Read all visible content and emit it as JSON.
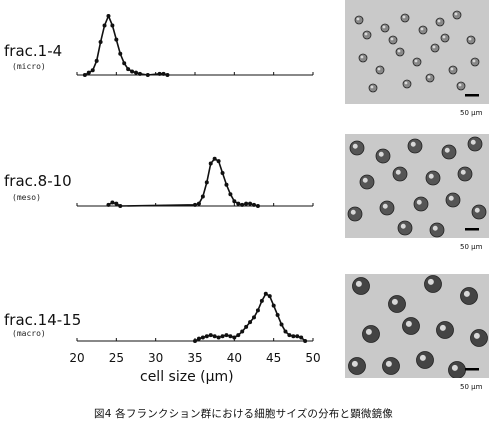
{
  "caption": "図4 各フランクション群における細胞サイズの分布と顕微鏡像",
  "chart_data": {
    "type": "line",
    "xlabel": "cell size (µm)",
    "xlim": [
      20,
      50
    ],
    "xticks": [
      20,
      25,
      30,
      35,
      40,
      45,
      50
    ],
    "panels": [
      {
        "label": "frac.1-4",
        "sublabel": "(micro)",
        "x": [
          21,
          21.5,
          22,
          22.5,
          23,
          23.5,
          24,
          24.5,
          25,
          25.5,
          26,
          26.5,
          27,
          27.5,
          28,
          29,
          30.5,
          31,
          31.5
        ],
        "y": [
          0,
          2,
          4,
          12,
          28,
          42,
          50,
          42,
          30,
          18,
          10,
          5,
          3,
          2,
          1,
          0,
          1,
          1,
          0
        ]
      },
      {
        "label": "frac.8-10",
        "sublabel": "(meso)",
        "x": [
          24,
          24.5,
          25,
          25.5,
          35,
          35.5,
          36,
          36.5,
          37,
          37.5,
          38,
          38.5,
          39,
          39.5,
          40,
          40.5,
          41,
          41.5,
          42,
          42.5,
          43
        ],
        "y": [
          1,
          3,
          2,
          0,
          1,
          2,
          8,
          20,
          36,
          40,
          38,
          28,
          18,
          10,
          4,
          2,
          1,
          2,
          2,
          1,
          0
        ]
      },
      {
        "label": "frac.14-15",
        "sublabel": "(macro)",
        "x": [
          35,
          35.5,
          36,
          36.5,
          37,
          37.5,
          38,
          38.5,
          39,
          39.5,
          40,
          40.5,
          41,
          41.5,
          42,
          42.5,
          43,
          43.5,
          44,
          44.5,
          45,
          45.5,
          46,
          46.5,
          47,
          47.5,
          48,
          48.5,
          49
        ],
        "y": [
          0,
          2,
          3,
          4,
          5,
          4,
          3,
          4,
          5,
          4,
          3,
          5,
          8,
          12,
          16,
          20,
          26,
          34,
          40,
          38,
          30,
          22,
          14,
          8,
          5,
          4,
          4,
          3,
          0
        ]
      }
    ]
  },
  "micrographs": [
    {
      "scale_label": "50 µm"
    },
    {
      "scale_label": "50 µm"
    },
    {
      "scale_label": "50 µm"
    }
  ]
}
